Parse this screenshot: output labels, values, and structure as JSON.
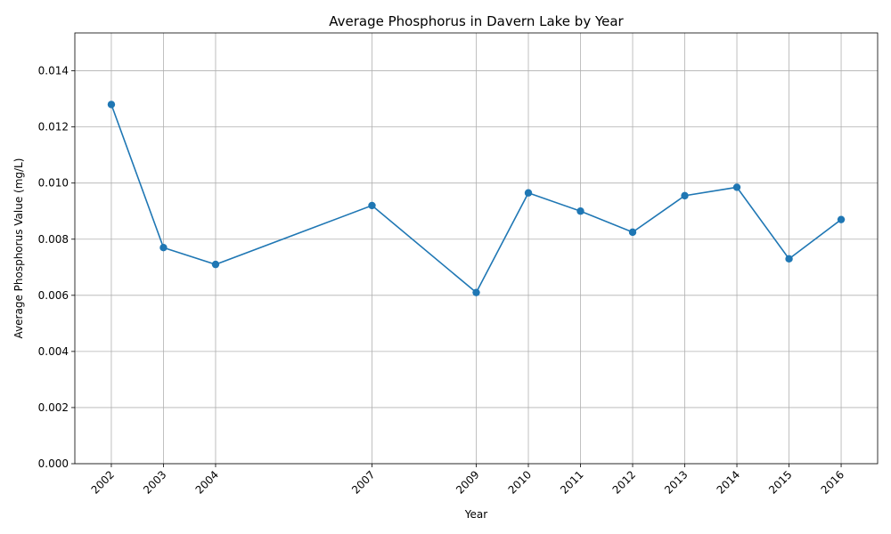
{
  "chart_data": {
    "type": "line",
    "title": "Average Phosphorus in Davern Lake by Year",
    "xlabel": "Year",
    "ylabel": "Average Phosphorus Value (mg/L)",
    "x": [
      2002,
      2003,
      2004,
      2007,
      2009,
      2010,
      2011,
      2012,
      2013,
      2014,
      2015,
      2016
    ],
    "x_tick_labels": [
      "2002",
      "2003",
      "2004",
      "2007",
      "2009",
      "2010",
      "2011",
      "2012",
      "2013",
      "2014",
      "2015",
      "2016"
    ],
    "y": [
      0.0128,
      0.0077,
      0.0071,
      0.0092,
      0.0061,
      0.00965,
      0.009,
      0.00825,
      0.00955,
      0.00985,
      0.0073,
      0.0087
    ],
    "xlim": [
      2001.3,
      2016.7
    ],
    "ylim": [
      0,
      0.01535
    ],
    "y_ticks": [
      0,
      0.002,
      0.004,
      0.006,
      0.008,
      0.01,
      0.012,
      0.014
    ],
    "y_tick_labels": [
      "0.000",
      "0.002",
      "0.004",
      "0.006",
      "0.008",
      "0.010",
      "0.012",
      "0.014"
    ],
    "grid": true,
    "line_color": "#1f77b4",
    "marker": "circle"
  }
}
